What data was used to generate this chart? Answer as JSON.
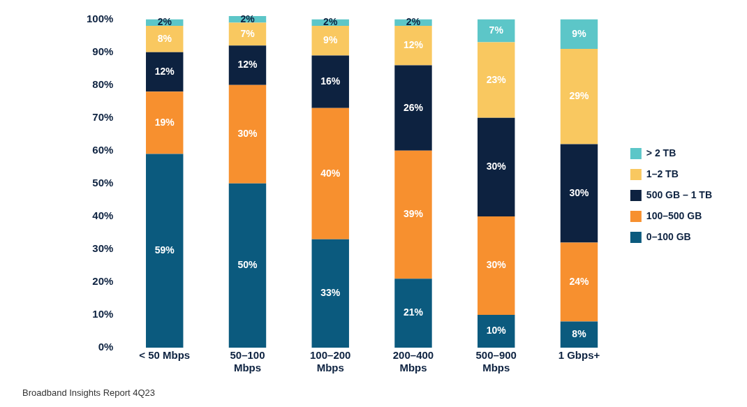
{
  "chart_data": {
    "type": "bar",
    "stacked": true,
    "categories": [
      "< 50 Mbps",
      "50–100 Mbps",
      "100–200 Mbps",
      "200–400 Mbps",
      "500–900 Mbps",
      "1 Gbps+"
    ],
    "series": [
      {
        "name": "0–100 GB",
        "color": "#0b5a7e",
        "values": [
          59,
          50,
          33,
          21,
          10,
          8
        ],
        "value_labels": [
          "59%",
          "50%",
          "33%",
          "21%",
          "10%",
          "8%"
        ]
      },
      {
        "name": "100–500 GB",
        "color": "#f7902f",
        "values": [
          19,
          30,
          40,
          39,
          30,
          24
        ],
        "value_labels": [
          "19%",
          "30%",
          "40%",
          "39%",
          "30%",
          "24%"
        ]
      },
      {
        "name": "500 GB – 1 TB",
        "color": "#0d2240",
        "values": [
          12,
          12,
          16,
          26,
          30,
          30
        ],
        "value_labels": [
          "12%",
          "12%",
          "16%",
          "26%",
          "30%",
          "30%"
        ]
      },
      {
        "name": "1–2 TB",
        "color": "#f9c860",
        "values": [
          8,
          7,
          9,
          12,
          23,
          29
        ],
        "value_labels": [
          "8%",
          "7%",
          "9%",
          "12%",
          "23%",
          "29%"
        ]
      },
      {
        "name": "> 2 TB",
        "color": "#5cc6c8",
        "values": [
          2,
          2,
          2,
          2,
          7,
          9
        ],
        "value_labels": [
          "2%",
          "2%",
          "2%",
          "2%",
          "7%",
          "9%"
        ]
      }
    ],
    "ylim": [
      0,
      101
    ],
    "yticks": [
      {
        "value": 0,
        "label": "0%"
      },
      {
        "value": 10,
        "label": "10%"
      },
      {
        "value": 20,
        "label": "20%"
      },
      {
        "value": 30,
        "label": "30%"
      },
      {
        "value": 40,
        "label": "40%"
      },
      {
        "value": 50,
        "label": "50%"
      },
      {
        "value": 60,
        "label": "60%"
      },
      {
        "value": 70,
        "label": "70%"
      },
      {
        "value": 80,
        "label": "80%"
      },
      {
        "value": 90,
        "label": "90%"
      },
      {
        "value": 100,
        "label": "100%"
      }
    ],
    "grid": false,
    "legend": "right",
    "annotations": [
      "Broadband Insights Report 4Q23"
    ]
  }
}
